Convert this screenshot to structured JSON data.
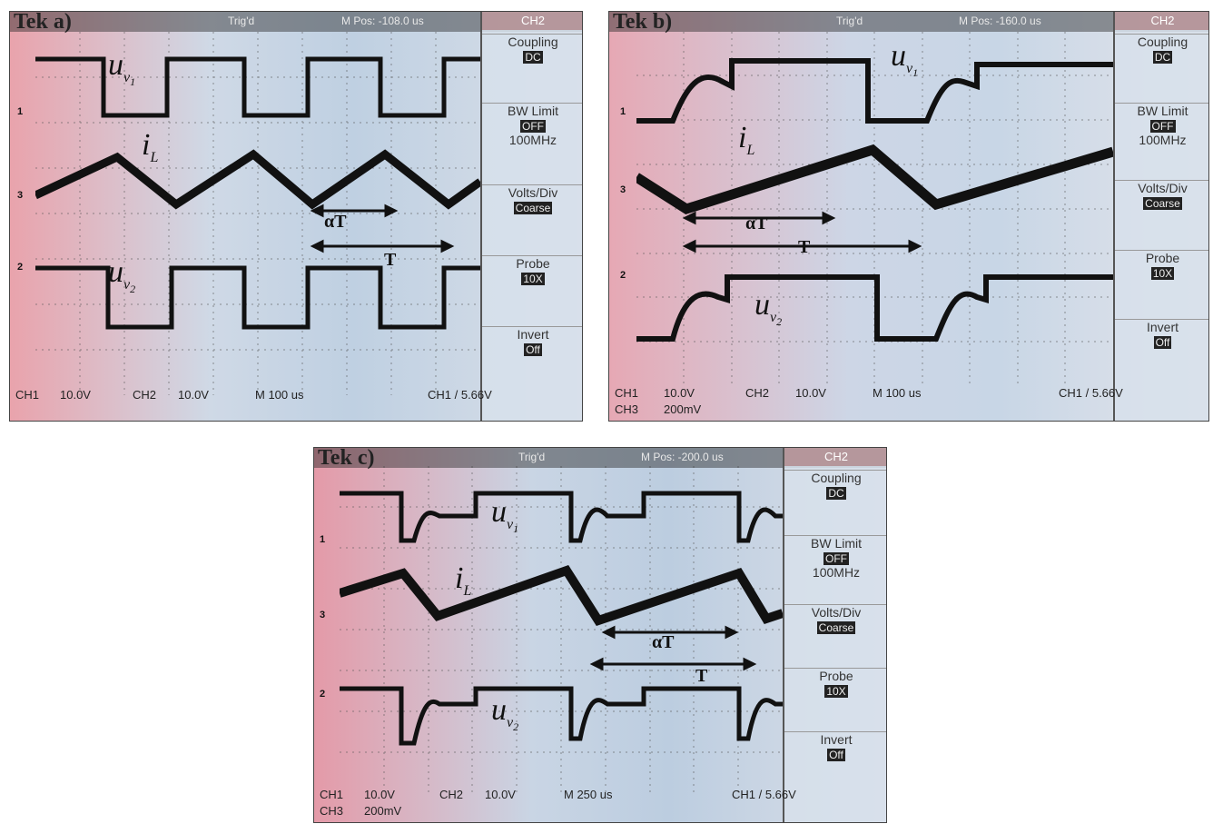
{
  "panels": [
    {
      "id": "a",
      "brand": "Tek",
      "panel_label": "a)",
      "trig_status": "Trig'd",
      "m_pos": "M Pos: -108.0 us",
      "menu": {
        "header": "CH2",
        "coupling": {
          "label": "Coupling",
          "value": "DC"
        },
        "bw_limit": {
          "label": "BW Limit",
          "value": "OFF",
          "extra": "100MHz"
        },
        "volts_div": {
          "label": "Volts/Div",
          "value": "Coarse"
        },
        "probe": {
          "label": "Probe",
          "value": "10X"
        },
        "invert": {
          "label": "Invert",
          "value": "Off"
        }
      },
      "status": {
        "ch1": "CH1",
        "ch1_scale": "10.0V",
        "ch2": "CH2",
        "ch2_scale": "10.0V",
        "timebase": "M 100 us",
        "trigger": "CH1 / 5.66V",
        "ch3": "",
        "ch3_scale": ""
      },
      "markers": [
        "1",
        "3",
        "2"
      ],
      "labels": {
        "u1": "u",
        "u1_sub": "v",
        "u1_subsub": "1",
        "iL": "i",
        "iL_sub": "L",
        "u2": "u",
        "u2_sub": "v",
        "u2_subsub": "2",
        "alphaT": "αT",
        "T": "T"
      }
    },
    {
      "id": "b",
      "brand": "Tek",
      "panel_label": "b)",
      "trig_status": "Trig'd",
      "m_pos": "M Pos: -160.0 us",
      "menu": {
        "header": "CH2",
        "coupling": {
          "label": "Coupling",
          "value": "DC"
        },
        "bw_limit": {
          "label": "BW Limit",
          "value": "OFF",
          "extra": "100MHz"
        },
        "volts_div": {
          "label": "Volts/Div",
          "value": "Coarse"
        },
        "probe": {
          "label": "Probe",
          "value": "10X"
        },
        "invert": {
          "label": "Invert",
          "value": "Off"
        }
      },
      "status": {
        "ch1": "CH1",
        "ch1_scale": "10.0V",
        "ch2": "CH2",
        "ch2_scale": "10.0V",
        "timebase": "M 100 us",
        "trigger": "CH1 / 5.66V",
        "ch3": "CH3",
        "ch3_scale": "200mV"
      },
      "markers": [
        "1",
        "3",
        "2"
      ],
      "labels": {
        "u1": "u",
        "u1_sub": "v",
        "u1_subsub": "1",
        "iL": "i",
        "iL_sub": "L",
        "u2": "u",
        "u2_sub": "v",
        "u2_subsub": "2",
        "alphaT": "αT",
        "T": "T"
      }
    },
    {
      "id": "c",
      "brand": "Tek",
      "panel_label": "c)",
      "trig_status": "Trig'd",
      "m_pos": "M Pos: -200.0 us",
      "menu": {
        "header": "CH2",
        "coupling": {
          "label": "Coupling",
          "value": "DC"
        },
        "bw_limit": {
          "label": "BW Limit",
          "value": "OFF",
          "extra": "100MHz"
        },
        "volts_div": {
          "label": "Volts/Div",
          "value": "Coarse"
        },
        "probe": {
          "label": "Probe",
          "value": "10X"
        },
        "invert": {
          "label": "Invert",
          "value": "Off"
        }
      },
      "status": {
        "ch1": "CH1",
        "ch1_scale": "10.0V",
        "ch2": "CH2",
        "ch2_scale": "10.0V",
        "timebase": "M 250 us",
        "trigger": "CH1 / 5.66V",
        "ch3": "CH3",
        "ch3_scale": "200mV"
      },
      "markers": [
        "1",
        "3",
        "2"
      ],
      "labels": {
        "u1": "u",
        "u1_sub": "v",
        "u1_subsub": "1",
        "iL": "i",
        "iL_sub": "L",
        "u2": "u",
        "u2_sub": "v",
        "u2_subsub": "2",
        "alphaT": "αT",
        "T": "T"
      }
    }
  ],
  "colors": {
    "screen_tint_left": "#e8a0a8",
    "screen_tint_mid": "#c8d8e8",
    "screen_tint_right": "#e8e8f0",
    "trace": "#111111"
  }
}
